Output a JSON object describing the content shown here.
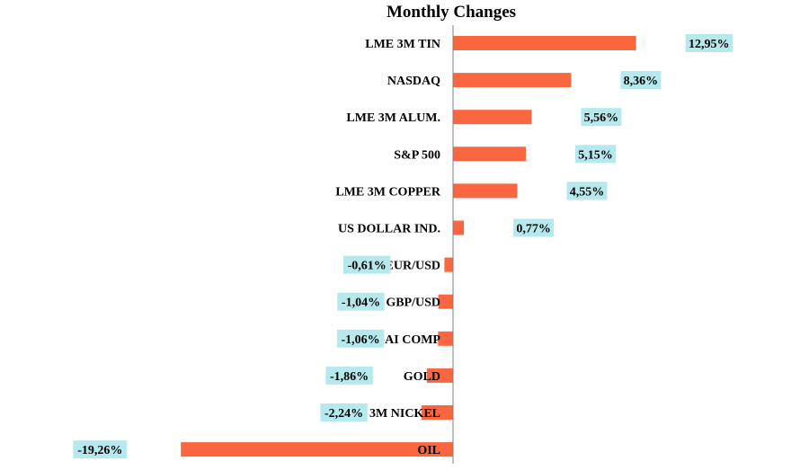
{
  "chart_data": {
    "type": "bar",
    "orientation": "horizontal",
    "title": "Monthly Changes",
    "categories": [
      "LME 3M TIN",
      "NASDAQ",
      "LME 3M ALUM.",
      "S&P 500",
      "LME 3M COPPER",
      "US DOLLAR IND.",
      "EUR/USD",
      "GBP/USD",
      "SHANGAI COMP",
      "GOLD",
      "LME 3M NICKEL",
      "OIL"
    ],
    "values": [
      12.95,
      8.36,
      5.56,
      5.15,
      4.55,
      0.77,
      -0.61,
      -1.04,
      -1.06,
      -1.86,
      -2.24,
      -19.26
    ],
    "data_labels": [
      "12,95%",
      "8,36%",
      "5,56%",
      "5,15%",
      "4,55%",
      "0,77%",
      "-0,61%",
      "-1,04%",
      "-1,06%",
      "-1,86%",
      "-2,24%",
      "-19,26%"
    ],
    "xlim": [
      -20,
      13
    ],
    "grid": false,
    "legend": "none",
    "colors": {
      "bar": "#F9663F",
      "label_bg": "#B6E9EE",
      "axis": "#7f7f7f"
    }
  }
}
